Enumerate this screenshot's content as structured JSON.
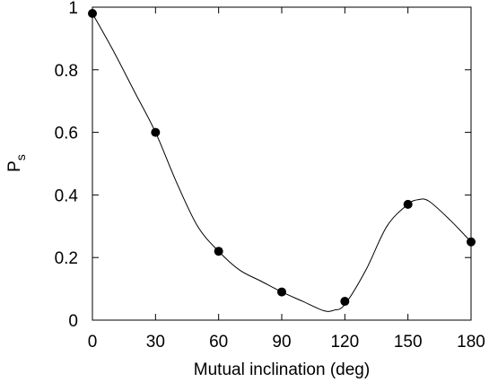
{
  "chart_data": {
    "type": "scatter",
    "title": "",
    "xlabel": "Mutual inclination (deg)",
    "ylabel": "P",
    "ylabel_sub": "s",
    "xlim": [
      0,
      180
    ],
    "ylim": [
      0,
      1
    ],
    "x_ticks": [
      "0",
      "30",
      "60",
      "90",
      "120",
      "150",
      "180"
    ],
    "y_ticks": [
      "0",
      "0.2",
      "0.4",
      "0.6",
      "0.8",
      "1"
    ],
    "grid": false,
    "legend": "none",
    "series": [
      {
        "x": [
          0,
          30,
          60,
          90,
          120,
          150,
          180
        ],
        "y": [
          0.98,
          0.6,
          0.22,
          0.09,
          0.06,
          0.37,
          0.25
        ]
      }
    ],
    "curve": {
      "x": [
        0,
        10,
        20,
        30,
        40,
        50,
        60,
        70,
        80,
        90,
        100,
        110,
        115,
        120,
        130,
        140,
        150,
        155,
        160,
        170,
        180
      ],
      "y": [
        0.98,
        0.86,
        0.73,
        0.6,
        0.44,
        0.3,
        0.22,
        0.16,
        0.125,
        0.09,
        0.06,
        0.03,
        0.032,
        0.05,
        0.16,
        0.3,
        0.37,
        0.385,
        0.38,
        0.32,
        0.25
      ]
    }
  }
}
